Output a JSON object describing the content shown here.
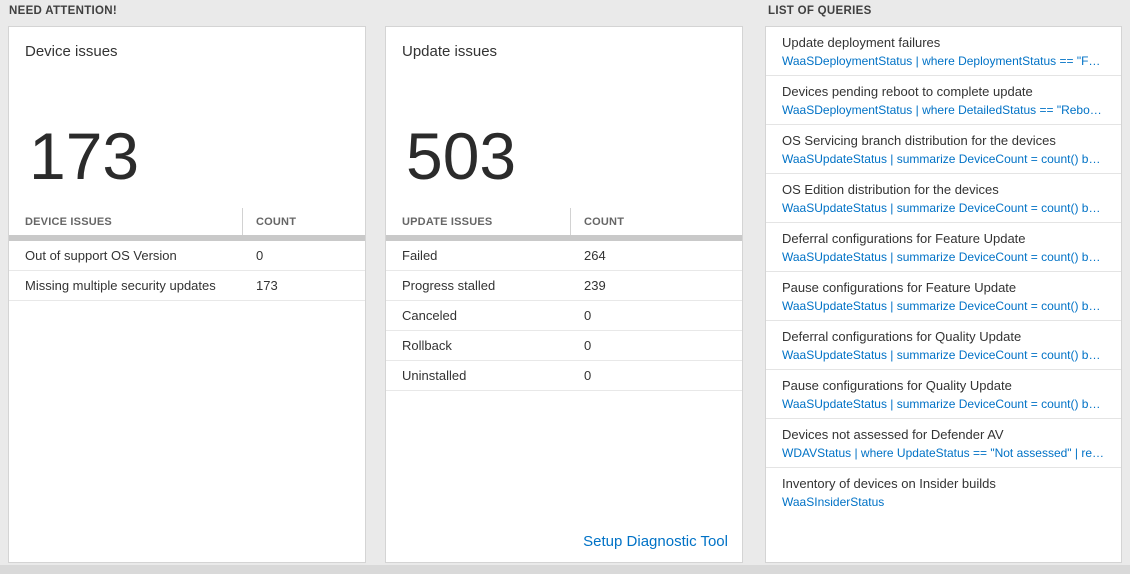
{
  "colors": {
    "accent_blue": "#0072c6",
    "page_bg": "#eaeaea"
  },
  "sections": {
    "need_attention_header": "NEED ATTENTION!",
    "queries_header": "LIST OF QUERIES"
  },
  "device_card": {
    "title": "Device issues",
    "count": "173",
    "columns": {
      "issue": "DEVICE ISSUES",
      "count": "COUNT"
    },
    "rows": [
      {
        "label": "Out of support OS Version",
        "count": "0"
      },
      {
        "label": "Missing multiple security updates",
        "count": "173"
      }
    ]
  },
  "update_card": {
    "title": "Update issues",
    "count": "503",
    "columns": {
      "issue": "UPDATE ISSUES",
      "count": "COUNT"
    },
    "rows": [
      {
        "label": "Failed",
        "count": "264"
      },
      {
        "label": "Progress stalled",
        "count": "239"
      },
      {
        "label": "Canceled",
        "count": "0"
      },
      {
        "label": "Rollback",
        "count": "0"
      },
      {
        "label": "Uninstalled",
        "count": "0"
      }
    ],
    "footer_link": "Setup Diagnostic Tool"
  },
  "query_card": {
    "items": [
      {
        "title": "Update deployment failures",
        "query": "WaaSDeploymentStatus | where DeploymentStatus == \"Failed\" |..."
      },
      {
        "title": "Devices pending reboot to complete update",
        "query": "WaaSDeploymentStatus | where DetailedStatus == \"Reboot pend..."
      },
      {
        "title": "OS Servicing branch distribution for the devices",
        "query": "WaaSUpdateStatus | summarize DeviceCount = count() by OSSer..."
      },
      {
        "title": "OS Edition distribution for the devices",
        "query": "WaaSUpdateStatus | summarize DeviceCount = count() by OSEdit..."
      },
      {
        "title": "Deferral configurations for Feature Update",
        "query": "WaaSUpdateStatus | summarize DeviceCount = count() by Featur..."
      },
      {
        "title": "Pause configurations for Feature Update",
        "query": "WaaSUpdateStatus | summarize DeviceCount = count() by Featur..."
      },
      {
        "title": "Deferral configurations for Quality Update",
        "query": "WaaSUpdateStatus | summarize DeviceCount = count() by Qualit..."
      },
      {
        "title": "Pause configurations for Quality Update",
        "query": "WaaSUpdateStatus | summarize DeviceCount = count() by Qualit..."
      },
      {
        "title": "Devices not assessed for Defender AV",
        "query": "WDAVStatus | where UpdateStatus == \"Not assessed\" | render ta..."
      },
      {
        "title": "Inventory of devices on Insider builds",
        "query": "WaaSInsiderStatus"
      }
    ]
  }
}
